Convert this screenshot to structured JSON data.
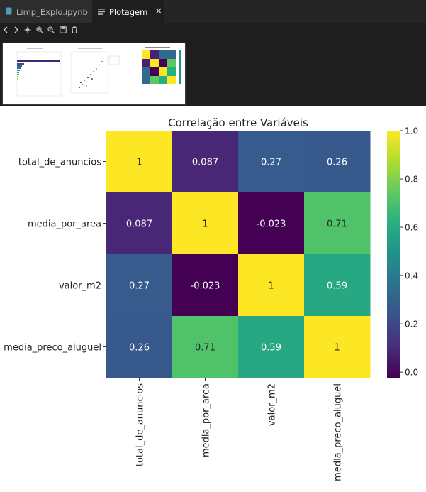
{
  "tabs": [
    {
      "label": "Limp_Explo.ipynb",
      "icon": "notebook-icon",
      "active": false
    },
    {
      "label": "Plotagem",
      "icon": "plot-icon",
      "active": true
    }
  ],
  "toolbar": {
    "icons": [
      "chevron-left-icon",
      "chevron-right-icon",
      "move-icon",
      "zoom-in-icon",
      "zoom-out-icon",
      "save-icon",
      "trash-icon"
    ]
  },
  "chart_data": {
    "type": "heatmap",
    "title": "Correlação entre Variáveis",
    "rows": [
      "total_de_anuncios",
      "media_por_area",
      "valor_m2",
      "media_preco_aluguel"
    ],
    "cols": [
      "total_de_anuncios",
      "media_por_area",
      "valor_m2",
      "media_preco_aluguel"
    ],
    "values": [
      [
        1,
        0.087,
        0.27,
        0.26
      ],
      [
        0.087,
        1,
        -0.023,
        0.71
      ],
      [
        0.27,
        -0.023,
        1,
        0.59
      ],
      [
        0.26,
        0.71,
        0.59,
        1
      ]
    ],
    "labels": [
      [
        "1",
        "0.087",
        "0.27",
        "0.26"
      ],
      [
        "0.087",
        "1",
        "-0.023",
        "0.71"
      ],
      [
        "0.27",
        "-0.023",
        "1",
        "0.59"
      ],
      [
        "0.26",
        "0.71",
        "0.59",
        "1"
      ]
    ],
    "vmin": -0.023,
    "vmax": 1.0,
    "colormap": "viridis",
    "colorbar_ticks": [
      0.0,
      0.2,
      0.4,
      0.6,
      0.8,
      1.0
    ],
    "colorbar_labels": [
      "0.0",
      "0.2",
      "0.4",
      "0.6",
      "0.8",
      "1.0"
    ]
  }
}
